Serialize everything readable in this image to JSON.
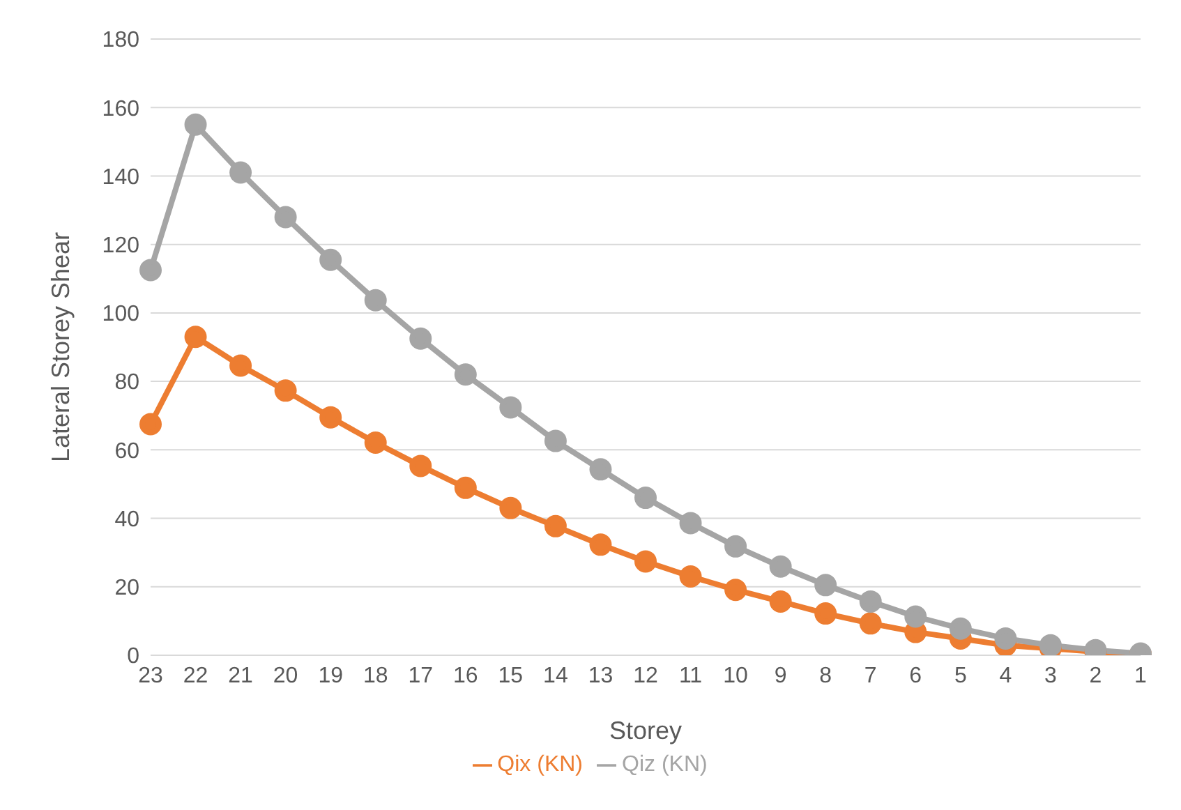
{
  "chart_data": {
    "type": "line",
    "xlabel": "Storey",
    "ylabel": "Lateral Storey Shear",
    "categories": [
      "23",
      "22",
      "21",
      "20",
      "19",
      "18",
      "17",
      "16",
      "15",
      "14",
      "13",
      "12",
      "11",
      "10",
      "9",
      "8",
      "7",
      "6",
      "5",
      "4",
      "3",
      "2",
      "1"
    ],
    "series": [
      {
        "name": "Qix (KN)",
        "color": "#ed7d31",
        "values": [
          67.5,
          93,
          84.6,
          77.3,
          69.5,
          62.1,
          55.3,
          48.9,
          43,
          37.7,
          32.3,
          27.4,
          23,
          19.1,
          15.7,
          12.2,
          9.3,
          6.8,
          4.9,
          2.9,
          2,
          1,
          0.3
        ]
      },
      {
        "name": "Qiz (KN)",
        "color": "#a5a5a5",
        "values": [
          112.5,
          155,
          141,
          128,
          115.5,
          103.7,
          92.5,
          82,
          72.4,
          62.6,
          54.3,
          46,
          38.6,
          31.8,
          25.9,
          20.5,
          15.7,
          11.3,
          7.8,
          4.9,
          2.9,
          1.5,
          0.5
        ]
      }
    ],
    "ylim": [
      0,
      180
    ],
    "yticks": [
      0,
      20,
      40,
      60,
      80,
      100,
      120,
      140,
      160,
      180
    ],
    "grid": "y",
    "legend": "bottom",
    "marker": "circle",
    "line_style": "solid"
  }
}
